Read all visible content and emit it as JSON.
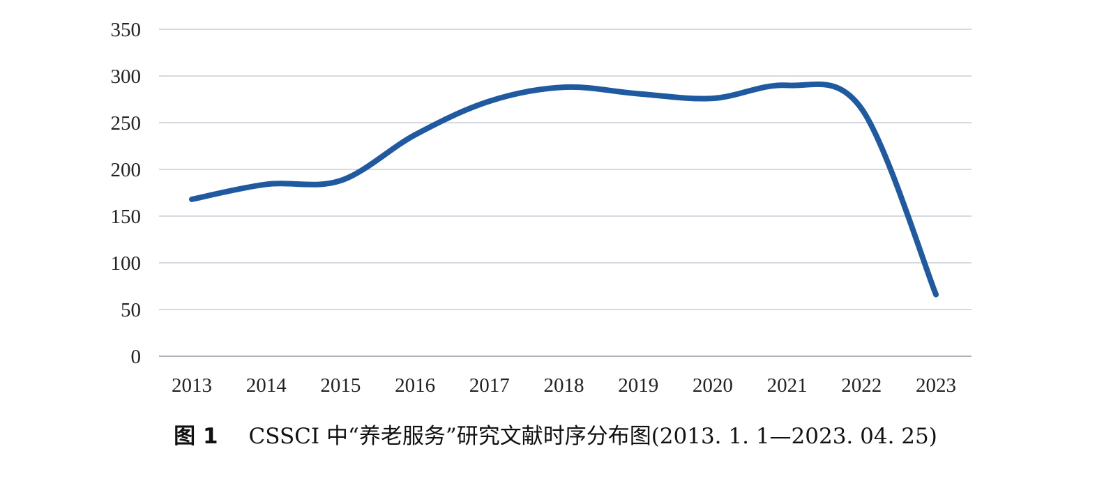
{
  "chart_data": {
    "type": "line",
    "categories": [
      "2013",
      "2014",
      "2015",
      "2016",
      "2017",
      "2018",
      "2019",
      "2020",
      "2021",
      "2022",
      "2023"
    ],
    "series": [
      {
        "values": [
          168,
          184,
          188,
          237,
          273,
          288,
          281,
          276,
          290,
          265,
          66
        ]
      }
    ],
    "ylim": [
      0,
      350
    ],
    "yticks": [
      0,
      50,
      100,
      150,
      200,
      250,
      300,
      350
    ],
    "grid": true,
    "legend": "none",
    "smooth": true,
    "colors": {
      "line": "#1f5aa0",
      "grid": "#c9ced6",
      "axis": "#b0b4ba"
    }
  },
  "caption": {
    "figure_no": "图 1",
    "text": "CSSCI 中“养老服务”研究文献时序分布图(2013. 1. 1—2023. 04. 25)"
  }
}
